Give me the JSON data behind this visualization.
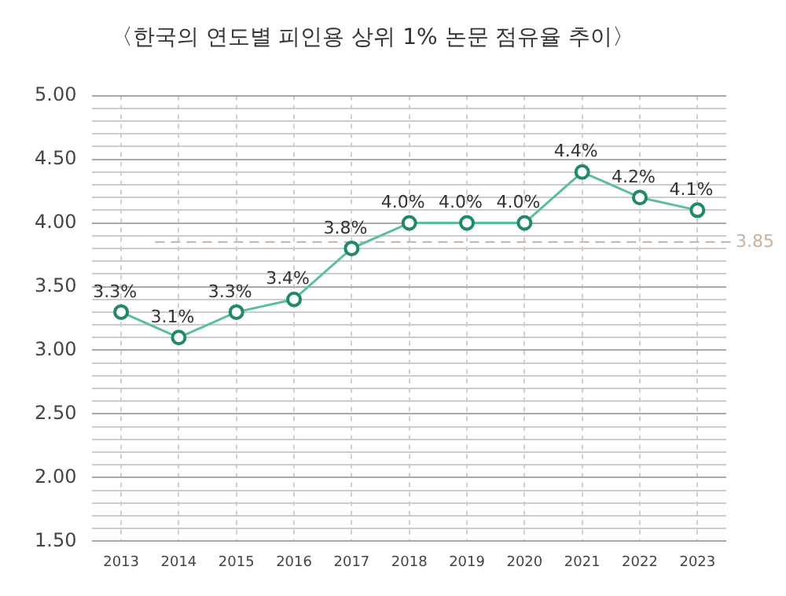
{
  "chart_data": {
    "type": "line",
    "title": "〈한국의 연도별 피인용 상위 1% 논문 점유율 추이〉",
    "categories": [
      "2013",
      "2014",
      "2015",
      "2016",
      "2017",
      "2018",
      "2019",
      "2020",
      "2021",
      "2022",
      "2023"
    ],
    "series": [
      {
        "color": "#5cbf9b",
        "values": [
          3.3,
          3.1,
          3.3,
          3.4,
          3.8,
          4.0,
          4.0,
          4.0,
          4.4,
          4.2,
          4.1
        ],
        "value_labels": [
          "3.3%",
          "3.1%",
          "3.3%",
          "3.4%",
          "3.8%",
          "4.0%",
          "4.0%",
          "4.0%",
          "4.4%",
          "4.2%",
          "4.1%"
        ]
      }
    ],
    "ylim": [
      1.5,
      5.0
    ],
    "yticks": [
      {
        "value": 1.5,
        "label": "1.50"
      },
      {
        "value": 1.6,
        "label": null
      },
      {
        "value": 1.7,
        "label": null
      },
      {
        "value": 1.8,
        "label": null
      },
      {
        "value": 1.9,
        "label": null
      },
      {
        "value": 2.0,
        "label": "2.00"
      },
      {
        "value": 2.1,
        "label": null
      },
      {
        "value": 2.2,
        "label": null
      },
      {
        "value": 2.3,
        "label": null
      },
      {
        "value": 2.4,
        "label": null
      },
      {
        "value": 2.5,
        "label": "2.50"
      },
      {
        "value": 2.6,
        "label": null
      },
      {
        "value": 2.7,
        "label": null
      },
      {
        "value": 2.8,
        "label": null
      },
      {
        "value": 2.9,
        "label": null
      },
      {
        "value": 3.0,
        "label": "3.00"
      },
      {
        "value": 3.1,
        "label": null
      },
      {
        "value": 3.2,
        "label": null
      },
      {
        "value": 3.3,
        "label": null
      },
      {
        "value": 3.4,
        "label": null
      },
      {
        "value": 3.5,
        "label": "3.50"
      },
      {
        "value": 3.6,
        "label": null
      },
      {
        "value": 3.7,
        "label": null
      },
      {
        "value": 3.8,
        "label": null
      },
      {
        "value": 3.9,
        "label": null
      },
      {
        "value": 4.0,
        "label": "4.00"
      },
      {
        "value": 4.1,
        "label": null
      },
      {
        "value": 4.2,
        "label": null
      },
      {
        "value": 4.3,
        "label": null
      },
      {
        "value": 4.4,
        "label": null
      },
      {
        "value": 4.5,
        "label": "4.50"
      },
      {
        "value": 4.6,
        "label": null
      },
      {
        "value": 4.7,
        "label": null
      },
      {
        "value": 4.8,
        "label": null
      },
      {
        "value": 4.9,
        "label": null
      },
      {
        "value": 5.0,
        "label": "5.00"
      }
    ],
    "ref_lines": [
      {
        "axis": "y",
        "value": 3.85,
        "label": "3.85",
        "color": "#c9b29e",
        "line_style": "dashed"
      }
    ],
    "grid": true,
    "marker": "circle",
    "line_style": "solid",
    "legend": false
  }
}
